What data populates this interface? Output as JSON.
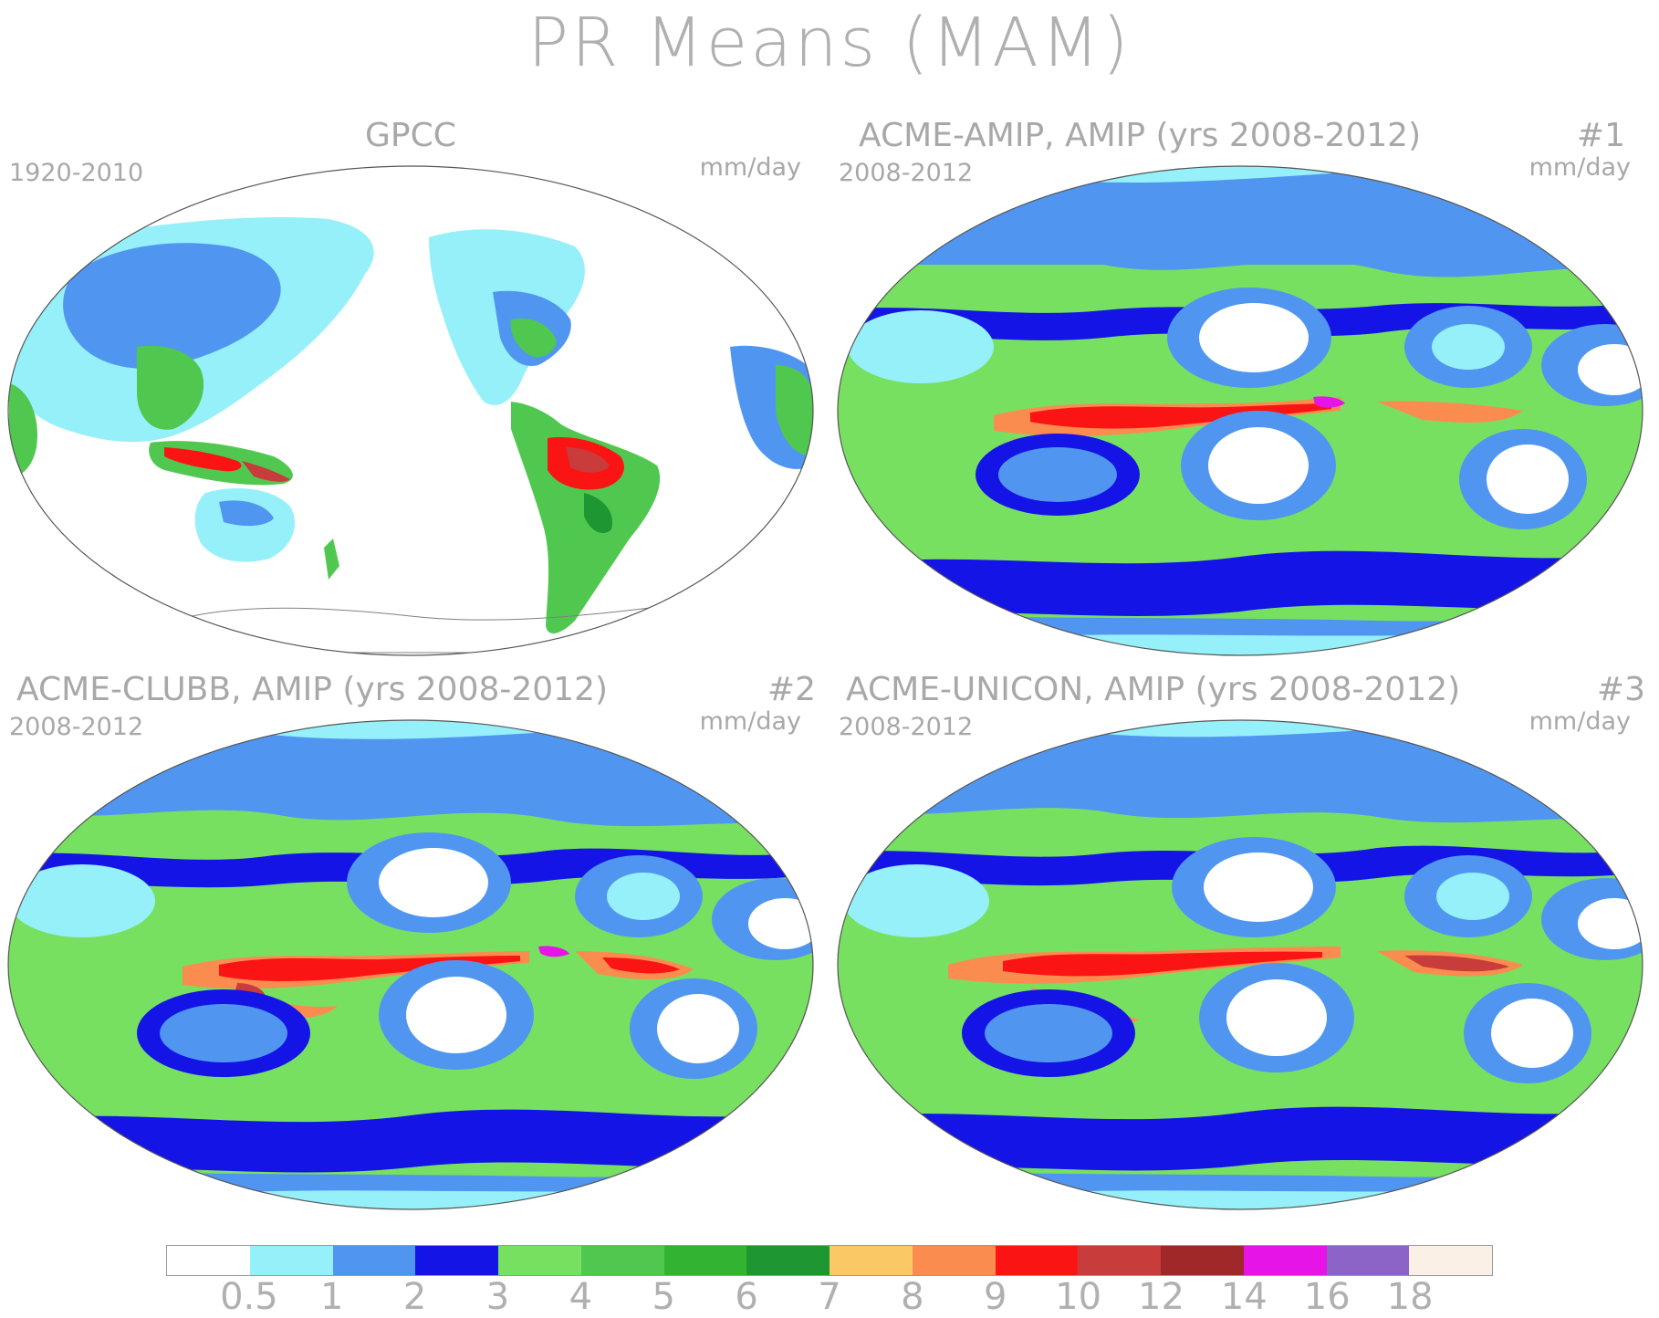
{
  "title": "PR Means (MAM)",
  "panels": [
    {
      "title": "GPCC",
      "number": "",
      "left_label": "1920-2010",
      "right_label": "mm/day",
      "variant": "obs"
    },
    {
      "title": "ACME-AMIP, AMIP (yrs 2008-2012)",
      "number": "#1",
      "left_label": "2008-2012",
      "right_label": "mm/day",
      "variant": "model1"
    },
    {
      "title": "ACME-CLUBB, AMIP (yrs 2008-2012)",
      "number": "#2",
      "left_label": "2008-2012",
      "right_label": "mm/day",
      "variant": "model2"
    },
    {
      "title": "ACME-UNICON, AMIP (yrs 2008-2012)",
      "number": "#3",
      "left_label": "2008-2012",
      "right_label": "mm/day",
      "variant": "model3"
    }
  ],
  "colorbar": {
    "unit": "mm/day",
    "colors": [
      "#ffffff",
      "#96f0fa",
      "#5096f0",
      "#1414e6",
      "#78e060",
      "#50c850",
      "#32b432",
      "#1e9632",
      "#fac864",
      "#fa8c50",
      "#fa1414",
      "#c83c3c",
      "#a02828",
      "#e614e6",
      "#8c64c8",
      "#faf0e6"
    ],
    "labels": [
      "0.5",
      "1",
      "2",
      "3",
      "4",
      "5",
      "6",
      "7",
      "8",
      "9",
      "10",
      "12",
      "14",
      "16",
      "18"
    ]
  }
}
